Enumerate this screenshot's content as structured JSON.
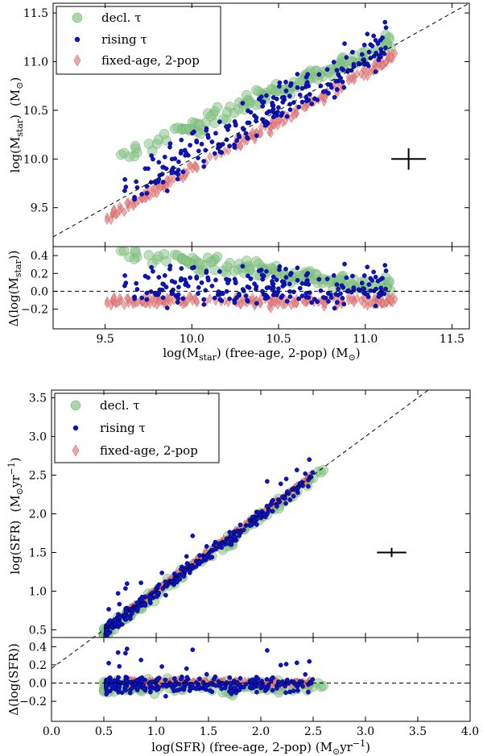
{
  "chart_data": [
    {
      "type": "scatter",
      "title": "",
      "panel": "mass-main",
      "ylabel": "log(M_star)  (M_sun)",
      "ylabel_parts": {
        "main": "log(M",
        "sub": "star",
        "close": ")",
        "unit_open": "(M",
        "unit_sym": "⊙",
        "unit_close": ")"
      },
      "xlim": [
        9.2,
        11.6
      ],
      "ylim": [
        9.1,
        11.6
      ],
      "yticks": [
        9.5,
        10.0,
        10.5,
        11.0,
        11.5
      ],
      "ytick_labels": [
        "9.5",
        "10.0",
        "10.5",
        "11.0",
        "11.5"
      ],
      "legend": [
        {
          "label": "decl. τ",
          "color": "#86c586"
        },
        {
          "label": "rising τ",
          "color": "#0a14c8"
        },
        {
          "label": "fixed-age, 2-pop",
          "color": "#e88a8a"
        }
      ],
      "series": [
        {
          "name": "decl. τ",
          "x_range": [
            9.58,
            11.15
          ],
          "offset_range": [
            0.05,
            0.42
          ],
          "noise": 0.06,
          "count": 130
        },
        {
          "name": "rising τ",
          "x_range": [
            9.58,
            11.12
          ],
          "offset_range": [
            -0.12,
            0.3
          ],
          "noise": 0.07,
          "count": 230
        },
        {
          "name": "fixed-age, 2-pop",
          "x_range": [
            9.48,
            11.18
          ],
          "offset_range": [
            -0.12,
            -0.1
          ],
          "noise": 0.035,
          "count": 190
        }
      ],
      "error_bar": {
        "x": 11.25,
        "y": 10.0,
        "xerr": 0.1,
        "yerr": 0.11
      }
    },
    {
      "type": "scatter",
      "panel": "mass-residual",
      "ylabel": "Δ(log(M_star))",
      "ylabel_parts": {
        "main": "Δ(log(M",
        "sub": "star",
        "close": "))"
      },
      "xlabel": "log(M_star) (free-age, 2-pop) (M_sun)",
      "xlabel_parts": {
        "main": "log(M",
        "sub": "star",
        "mid": ") (free-age, 2-pop) (M",
        "sym": "⊙",
        "close": ")"
      },
      "xlim": [
        9.2,
        11.6
      ],
      "ylim": [
        -0.42,
        0.5
      ],
      "xticks": [
        9.5,
        10.0,
        10.5,
        11.0,
        11.5
      ],
      "xtick_labels": [
        "9.5",
        "10.0",
        "10.5",
        "11.0",
        "11.5"
      ],
      "yticks": [
        -0.2,
        0.0,
        0.2,
        0.4
      ],
      "ytick_labels": [
        "−0.2",
        "0.0",
        "0.2",
        "0.4"
      ]
    },
    {
      "type": "scatter",
      "panel": "sfr-main",
      "ylabel": "log(SFR)  (M_sun yr^-1)",
      "ylabel_parts": {
        "main": "log(SFR)",
        "unit_open": "(M",
        "unit_sym": "⊙",
        "unit_mid": "yr",
        "unit_sup": "−1",
        "unit_close": ")"
      },
      "xlim": [
        0.0,
        4.0
      ],
      "ylim": [
        0.4,
        3.6
      ],
      "yticks": [
        0.5,
        1.0,
        1.5,
        2.0,
        2.5,
        3.0,
        3.5
      ],
      "ytick_labels": [
        "0.5",
        "1.0",
        "1.5",
        "2.0",
        "2.5",
        "3.0",
        "3.5"
      ],
      "legend": [
        {
          "label": "decl. τ",
          "color": "#86c586"
        },
        {
          "label": "rising τ",
          "color": "#0a14c8"
        },
        {
          "label": "fixed-age, 2-pop",
          "color": "#e88a8a"
        }
      ],
      "series": [
        {
          "name": "decl. τ",
          "x_range": [
            0.5,
            2.6
          ],
          "offset_range": [
            -0.05,
            -0.03
          ],
          "noise": 0.05,
          "count": 110
        },
        {
          "name": "rising τ",
          "x_range": [
            0.52,
            2.5
          ],
          "offset_range": [
            -0.02,
            -0.02
          ],
          "noise": 0.06,
          "count": 300
        },
        {
          "name": "fixed-age, 2-pop",
          "x_range": [
            0.75,
            2.5
          ],
          "offset_range": [
            0.0,
            0.0
          ],
          "noise": 0.02,
          "count": 220
        }
      ],
      "error_bar": {
        "x": 3.25,
        "y": 1.5,
        "xerr": 0.14,
        "yerr": 0.06
      }
    },
    {
      "type": "scatter",
      "panel": "sfr-residual",
      "ylabel": "Δ(log(SFR))",
      "ylabel_parts": {
        "main": "Δ(log(SFR))"
      },
      "xlabel": "log(SFR) (free-age, 2-pop) (M_sun yr^-1)",
      "xlabel_parts": {
        "main": "log(SFR) (free-age, 2-pop) (M",
        "sym": "⊙",
        "mid": "yr",
        "sup": "−1",
        "close": ")"
      },
      "xlim": [
        0.0,
        4.0
      ],
      "ylim": [
        -0.42,
        0.5
      ],
      "xticks": [
        0.0,
        0.5,
        1.0,
        1.5,
        2.0,
        2.5,
        3.0,
        3.5,
        4.0
      ],
      "xtick_labels": [
        "0.0",
        "0.5",
        "1.0",
        "1.5",
        "2.0",
        "2.5",
        "3.0",
        "3.5",
        "4.0"
      ],
      "yticks": [
        -0.2,
        0.0,
        0.2,
        0.4
      ],
      "ytick_labels": [
        "−0.2",
        "0.0",
        "0.2",
        "0.4"
      ]
    }
  ]
}
